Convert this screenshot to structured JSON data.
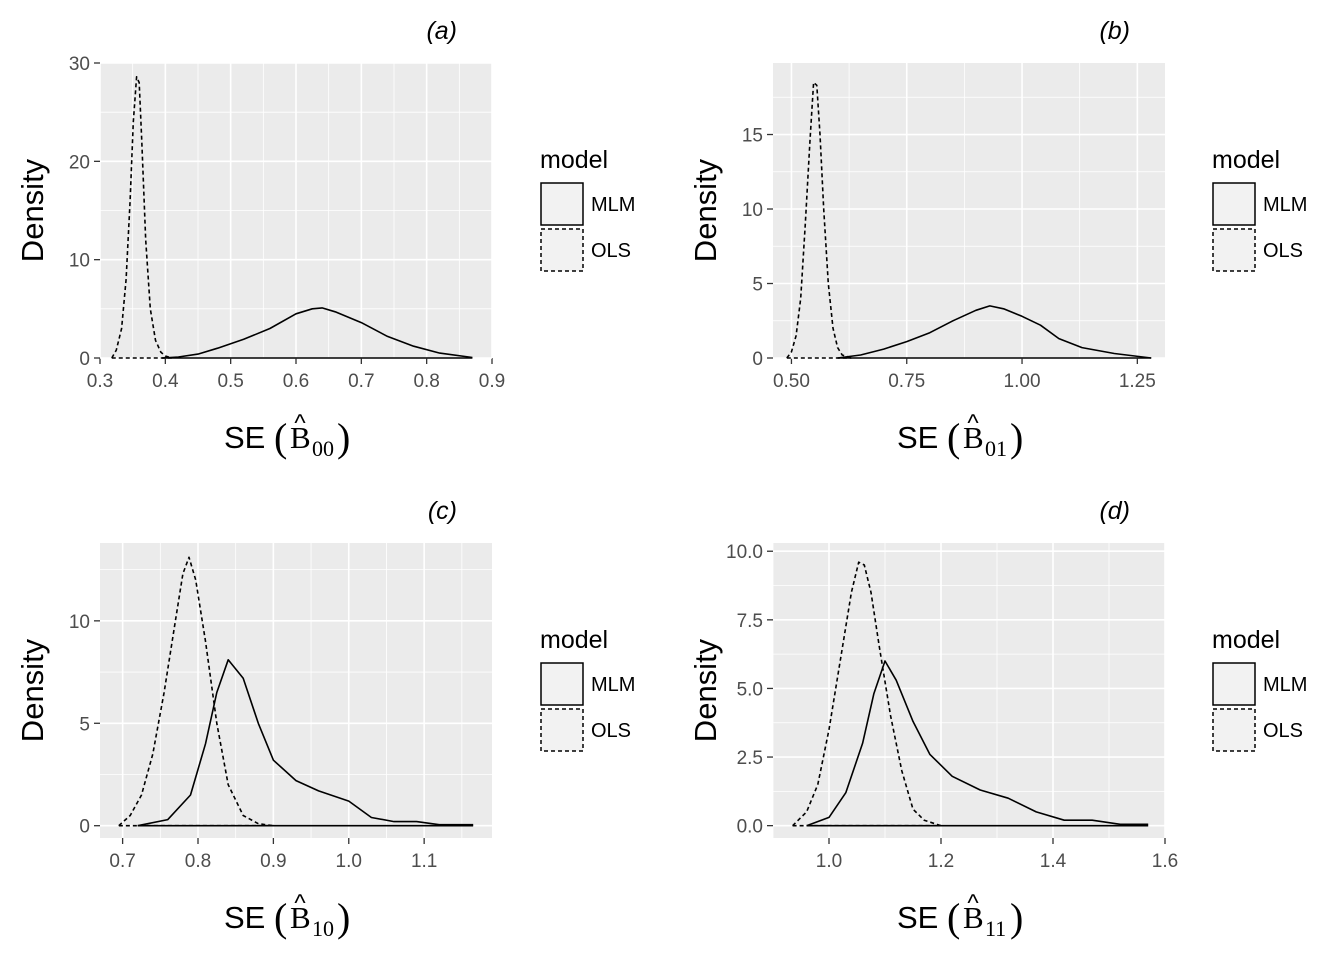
{
  "legend": {
    "title": "model",
    "items": [
      {
        "label": "MLM",
        "linetype": "solid"
      },
      {
        "label": "OLS",
        "linetype": "dashed"
      }
    ]
  },
  "chart_data": [
    {
      "type": "line",
      "panel": "(a)",
      "title": "(a)",
      "ylabel": "Density",
      "xlabel": {
        "prefix": "SE(",
        "symbol": "B",
        "hat": "^",
        "subscript": "00",
        "suffix": ")"
      },
      "xlim": [
        0.3,
        0.9
      ],
      "ylim": [
        0,
        30
      ],
      "xticks": [
        0.3,
        0.4,
        0.5,
        0.6,
        0.7,
        0.8,
        0.9
      ],
      "xtick_labels": [
        "0.3",
        "0.4",
        "0.5",
        "0.6",
        "0.7",
        "0.8",
        "0.9"
      ],
      "yticks": [
        0,
        10,
        20,
        30
      ],
      "ytick_labels": [
        "0",
        "10",
        "20",
        "30"
      ],
      "series": [
        {
          "name": "MLM",
          "linetype": "solid",
          "x": [
            0.395,
            0.42,
            0.45,
            0.48,
            0.52,
            0.56,
            0.6,
            0.625,
            0.64,
            0.66,
            0.7,
            0.74,
            0.78,
            0.82,
            0.87
          ],
          "y": [
            0,
            0.1,
            0.4,
            1.0,
            1.9,
            3.0,
            4.5,
            5.0,
            5.1,
            4.7,
            3.6,
            2.2,
            1.2,
            0.5,
            0.05
          ]
        },
        {
          "name": "OLS",
          "linetype": "dashed",
          "x": [
            0.318,
            0.325,
            0.333,
            0.34,
            0.346,
            0.351,
            0.356,
            0.36,
            0.364,
            0.37,
            0.377,
            0.385,
            0.393,
            0.4,
            0.41
          ],
          "y": [
            0,
            0.8,
            3.0,
            8.0,
            16.0,
            24.0,
            28.6,
            28.0,
            22.0,
            12.0,
            5.0,
            1.8,
            0.6,
            0.2,
            0
          ]
        }
      ]
    },
    {
      "type": "line",
      "panel": "(b)",
      "title": "(b)",
      "ylabel": "Density",
      "xlabel": {
        "prefix": "SE(",
        "symbol": "B",
        "hat": "^",
        "subscript": "01",
        "suffix": ")"
      },
      "xlim": [
        0.46,
        1.31
      ],
      "ylim": [
        0,
        19.8
      ],
      "xticks": [
        0.5,
        0.75,
        1.0,
        1.25
      ],
      "xtick_labels": [
        "0.50",
        "0.75",
        "1.00",
        "1.25"
      ],
      "yticks": [
        0,
        5,
        10,
        15
      ],
      "ytick_labels": [
        "0",
        "5",
        "10",
        "15"
      ],
      "series": [
        {
          "name": "MLM",
          "linetype": "solid",
          "x": [
            0.6,
            0.65,
            0.7,
            0.75,
            0.8,
            0.85,
            0.9,
            0.93,
            0.96,
            1.0,
            1.04,
            1.08,
            1.13,
            1.2,
            1.28
          ],
          "y": [
            0,
            0.2,
            0.6,
            1.1,
            1.7,
            2.5,
            3.2,
            3.5,
            3.3,
            2.8,
            2.2,
            1.3,
            0.7,
            0.3,
            0
          ]
        },
        {
          "name": "OLS",
          "linetype": "dashed",
          "x": [
            0.49,
            0.5,
            0.51,
            0.52,
            0.53,
            0.54,
            0.548,
            0.555,
            0.562,
            0.57,
            0.58,
            0.59,
            0.6,
            0.61,
            0.63
          ],
          "y": [
            0,
            0.4,
            1.5,
            4.0,
            9.0,
            14.5,
            18.5,
            18.3,
            15.0,
            10.0,
            5.0,
            2.0,
            0.7,
            0.2,
            0
          ]
        }
      ]
    },
    {
      "type": "line",
      "panel": "(c)",
      "title": "(c)",
      "ylabel": "Density",
      "xlabel": {
        "prefix": "SE(",
        "symbol": "B",
        "hat": "^",
        "subscript": "10",
        "suffix": ")"
      },
      "xlim": [
        0.67,
        1.19
      ],
      "ylim": [
        -0.6,
        13.8
      ],
      "xticks": [
        0.7,
        0.8,
        0.9,
        1.0,
        1.1
      ],
      "xtick_labels": [
        "0.7",
        "0.8",
        "0.9",
        "1.0",
        "1.1"
      ],
      "yticks": [
        0,
        5,
        10
      ],
      "ytick_labels": [
        "0",
        "5",
        "10"
      ],
      "series": [
        {
          "name": "MLM",
          "linetype": "solid",
          "x": [
            0.72,
            0.76,
            0.79,
            0.81,
            0.825,
            0.84,
            0.86,
            0.88,
            0.9,
            0.93,
            0.96,
            1.0,
            1.03,
            1.06,
            1.09,
            1.12,
            1.165
          ],
          "y": [
            0,
            0.3,
            1.5,
            4.0,
            6.5,
            8.1,
            7.2,
            5.0,
            3.2,
            2.2,
            1.7,
            1.2,
            0.4,
            0.2,
            0.2,
            0.05,
            0.05
          ]
        },
        {
          "name": "OLS",
          "linetype": "dashed",
          "x": [
            0.695,
            0.71,
            0.725,
            0.74,
            0.755,
            0.77,
            0.78,
            0.788,
            0.797,
            0.81,
            0.825,
            0.84,
            0.86,
            0.88,
            0.9
          ],
          "y": [
            0,
            0.5,
            1.5,
            3.5,
            6.5,
            10.0,
            12.3,
            13.1,
            12.0,
            9.0,
            5.0,
            2.0,
            0.5,
            0.1,
            0
          ]
        }
      ]
    },
    {
      "type": "line",
      "panel": "(d)",
      "title": "(d)",
      "ylabel": "Density",
      "xlabel": {
        "prefix": "SE(",
        "symbol": "B",
        "hat": "^",
        "subscript": "11",
        "suffix": ")"
      },
      "xlim": [
        0.9,
        1.6
      ],
      "ylim": [
        -0.45,
        10.3
      ],
      "xticks": [
        1.0,
        1.2,
        1.4,
        1.6
      ],
      "xtick_labels": [
        "1.0",
        "1.2",
        "1.4",
        "1.6"
      ],
      "ytick_labels": [
        "0.0",
        "2.5",
        "5.0",
        "7.5",
        "10.0"
      ],
      "yticks": [
        0,
        2.5,
        5,
        7.5,
        10
      ],
      "series": [
        {
          "name": "MLM",
          "linetype": "solid",
          "x": [
            0.96,
            1.0,
            1.03,
            1.06,
            1.08,
            1.1,
            1.12,
            1.15,
            1.18,
            1.22,
            1.27,
            1.32,
            1.37,
            1.42,
            1.47,
            1.52,
            1.57
          ],
          "y": [
            0,
            0.3,
            1.2,
            3.0,
            4.8,
            6.0,
            5.3,
            3.8,
            2.6,
            1.8,
            1.3,
            1.0,
            0.5,
            0.2,
            0.2,
            0.05,
            0.05
          ]
        },
        {
          "name": "OLS",
          "linetype": "dashed",
          "x": [
            0.935,
            0.96,
            0.98,
            1.0,
            1.02,
            1.04,
            1.053,
            1.063,
            1.075,
            1.09,
            1.11,
            1.13,
            1.15,
            1.17,
            1.2
          ],
          "y": [
            0,
            0.5,
            1.5,
            3.5,
            6.0,
            8.5,
            9.6,
            9.5,
            8.5,
            6.5,
            4.0,
            2.0,
            0.6,
            0.2,
            0
          ]
        }
      ]
    }
  ]
}
